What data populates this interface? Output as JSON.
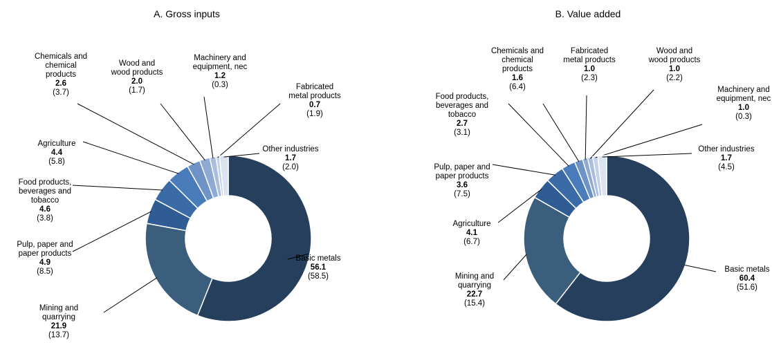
{
  "chart_data": [
    {
      "type": "donut",
      "title": "A. Gross inputs",
      "categories": [
        "Basic metals",
        "Mining and\nquarrying",
        "Pulp, paper and\npaper products",
        "Food products,\nbeverages and\ntobacco",
        "Agriculture",
        "Chemicals and\nchemical\nproducts",
        "Wood and\nwood products",
        "Machinery and\nequipment, nec",
        "Fabricated\nmetal products",
        "Other industries"
      ],
      "values": [
        56.1,
        21.9,
        4.9,
        4.6,
        4.4,
        2.6,
        2.0,
        1.2,
        0.7,
        1.7
      ],
      "value_labels": [
        "56.1",
        "21.9",
        "4.9",
        "4.6",
        "4.4",
        "2.6",
        "2.0",
        "1.2",
        "0.7",
        "1.7"
      ],
      "secondary_labels": [
        "(58.5)",
        "(13.7)",
        "(8.5)",
        "(3.8)",
        "(5.8)",
        "(3.7)",
        "(1.7)",
        "(0.3)",
        "(1.9)",
        "(2.0)"
      ],
      "colors": [
        "#253f5d",
        "#3b5e7c",
        "#2f5c92",
        "#3b6ba6",
        "#4a7cbc",
        "#6d93c7",
        "#8eaad3",
        "#a9bddf",
        "#c3d1ea",
        "#dbe3f1"
      ]
    },
    {
      "type": "donut",
      "title": "B. Value added",
      "categories": [
        "Basic metals",
        "Mining and\nquarrying",
        "Agriculture",
        "Pulp, paper and\npaper products",
        "Food products,\nbeverages and\ntobacco",
        "Chemicals and\nchemical\nproducts",
        "Fabricated\nmetal products",
        "Wood and\nwood products",
        "Machinery and\nequipment, nec",
        "Other industries"
      ],
      "values": [
        60.4,
        22.7,
        4.1,
        3.6,
        2.7,
        1.6,
        1.0,
        1.0,
        1.0,
        1.7
      ],
      "value_labels": [
        "60.4",
        "22.7",
        "4.1",
        "3.6",
        "2.7",
        "1.6",
        "1.0",
        "1.0",
        "1.0",
        "1.7"
      ],
      "secondary_labels": [
        "(51.6)",
        "(15.4)",
        "(6.7)",
        "(7.5)",
        "(3.1)",
        "(6.4)",
        "(2.3)",
        "(2.2)",
        "(0.3)",
        "(4.5)"
      ],
      "colors": [
        "#253f5d",
        "#3b5e7c",
        "#2f5c92",
        "#3b6ba6",
        "#4a7cbc",
        "#6d93c7",
        "#8eaad3",
        "#a9bddf",
        "#c3d1ea",
        "#dbe3f1"
      ]
    }
  ]
}
